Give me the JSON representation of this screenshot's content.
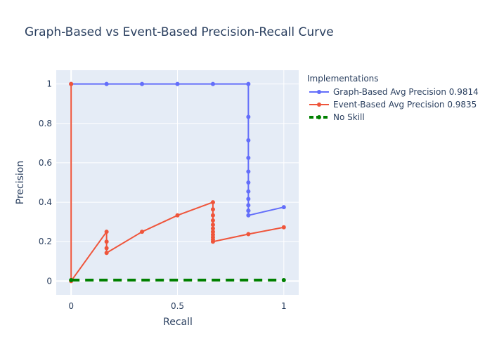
{
  "chart_data": {
    "type": "line",
    "title": "Graph-Based vs Event-Based Precision-Recall Curve",
    "xlabel": "Recall",
    "ylabel": "Precision",
    "xlim": [
      -0.07,
      1.07
    ],
    "ylim": [
      -0.07,
      1.07
    ],
    "x_ticks": [
      0,
      0.5,
      1
    ],
    "x_tick_labels": [
      "0",
      "0.5",
      "1"
    ],
    "y_ticks": [
      0,
      0.2,
      0.4,
      0.6,
      0.8,
      1
    ],
    "y_tick_labels": [
      "0",
      "0.2",
      "0.4",
      "0.6",
      "0.8",
      "1"
    ],
    "grid": true,
    "legend_title": "Implementations",
    "legend_position": "top-right-outside",
    "series": [
      {
        "name": "Graph-Based Avg Precision 0.9814",
        "color": "#636efa",
        "dash": "solid",
        "x": [
          0,
          0.1667,
          0.3333,
          0.5,
          0.6667,
          0.8333,
          0.8333,
          0.8333,
          0.8333,
          0.8333,
          0.8333,
          0.8333,
          0.8333,
          0.8333,
          0.8333,
          0.8333,
          0.8333,
          1
        ],
        "y": [
          1,
          1,
          1,
          1,
          1,
          1,
          0.8333,
          0.7143,
          0.625,
          0.5556,
          0.5,
          0.4545,
          0.4167,
          0.3846,
          0.3571,
          0.3571,
          0.3333,
          0.375
        ]
      },
      {
        "name": "Event-Based Avg Precision 0.9835",
        "color": "#ef553b",
        "dash": "solid",
        "x": [
          0,
          0,
          0.1667,
          0.1667,
          0.1667,
          0.1667,
          0.3333,
          0.5,
          0.6667,
          0.6667,
          0.6667,
          0.6667,
          0.6667,
          0.6667,
          0.6667,
          0.6667,
          0.6667,
          0.6667,
          0.6667,
          0.8333,
          1
        ],
        "y": [
          1,
          0,
          0.25,
          0.2,
          0.1667,
          0.1429,
          0.25,
          0.3333,
          0.4,
          0.3636,
          0.3333,
          0.3077,
          0.2857,
          0.2667,
          0.25,
          0.2353,
          0.2222,
          0.2105,
          0.2,
          0.2381,
          0.2727
        ]
      },
      {
        "name": "No Skill",
        "color": "#008000",
        "dash": "dash",
        "x": [
          0,
          1
        ],
        "y": [
          0.005,
          0.005
        ]
      }
    ]
  }
}
